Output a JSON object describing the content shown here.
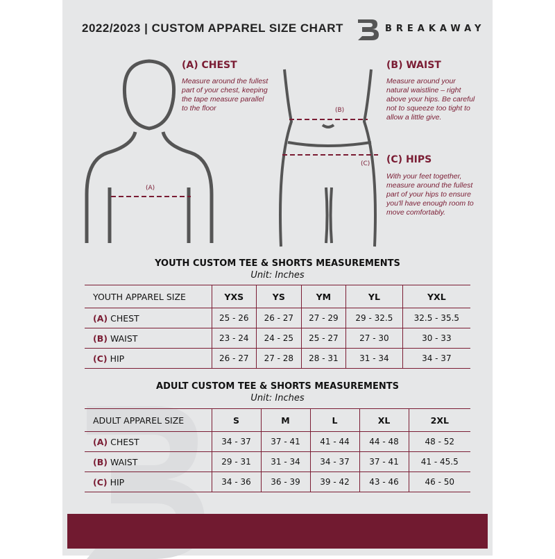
{
  "header": {
    "title": "2022/2023 | CUSTOM APPAREL SIZE CHART",
    "brand": "BREAKAWAY",
    "logo_letter": "B"
  },
  "guides": {
    "chest": {
      "heading": "(A) CHEST",
      "tag": "(A)",
      "text": "Measure around the fullest part of your chest, keeping the tape measure parallel to the floor"
    },
    "waist": {
      "heading": "(B) WAIST",
      "tag": "(B)",
      "text": "Measure around your natural waistline – right above your hips. Be careful not to squeeze too tight to allow a little give."
    },
    "hips": {
      "heading": "(C) HIPS",
      "tag": "(C)",
      "text": "With your feet together, measure around the fullest part of your hips to ensure you'll have enough room to move comfortably."
    }
  },
  "youth": {
    "title": "YOUTH CUSTOM TEE & SHORTS MEASUREMENTS",
    "unit": "Unit: Inches",
    "size_label": "YOUTH APPAREL SIZE",
    "sizes": [
      "YXS",
      "YS",
      "YM",
      "YL",
      "YXL"
    ],
    "rows": [
      {
        "code": "(A)",
        "name": "CHEST",
        "values": [
          "25 - 26",
          "26 - 27",
          "27 - 29",
          "29 - 32.5",
          "32.5 - 35.5"
        ]
      },
      {
        "code": "(B)",
        "name": "WAIST",
        "values": [
          "23 - 24",
          "24 - 25",
          "25 - 27",
          "27 - 30",
          "30 - 33"
        ]
      },
      {
        "code": "(C)",
        "name": "HIP",
        "values": [
          "26 - 27",
          "27 - 28",
          "28 - 31",
          "31 - 34",
          "34 - 37"
        ]
      }
    ]
  },
  "adult": {
    "title": "ADULT CUSTOM TEE & SHORTS MEASUREMENTS",
    "unit": "Unit: Inches",
    "size_label": "ADULT APPAREL SIZE",
    "sizes": [
      "S",
      "M",
      "L",
      "XL",
      "2XL"
    ],
    "rows": [
      {
        "code": "(A)",
        "name": "CHEST",
        "values": [
          "34 - 37",
          "37 - 41",
          "41 - 44",
          "44 - 48",
          "48 - 52"
        ]
      },
      {
        "code": "(B)",
        "name": "WAIST",
        "values": [
          "29 - 31",
          "31 - 34",
          "34 - 37",
          "37 - 41",
          "41 - 45.5"
        ]
      },
      {
        "code": "(C)",
        "name": "HIP",
        "values": [
          "34 - 36",
          "36 - 39",
          "39 - 42",
          "43 - 46",
          "46 - 50"
        ]
      }
    ]
  },
  "colors": {
    "accent": "#7a1c33",
    "footer": "#711a30",
    "background": "#e6e7e8"
  }
}
